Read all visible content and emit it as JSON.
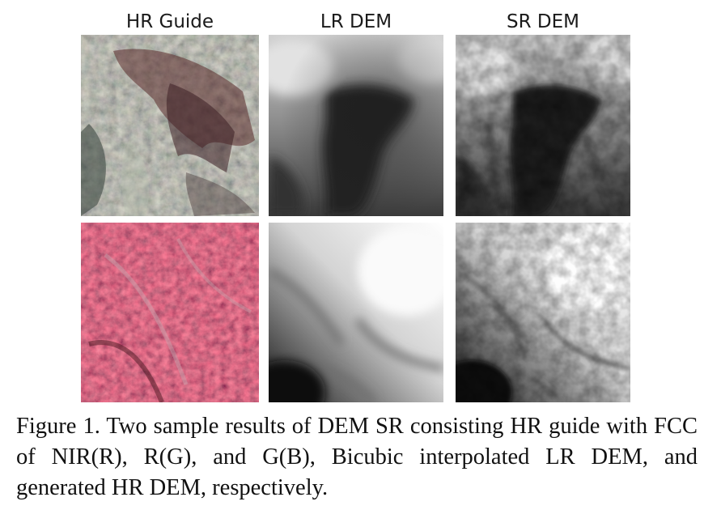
{
  "columns": [
    "HR Guide",
    "LR DEM",
    "SR DEM"
  ],
  "caption": "Figure 1.  Two sample results of DEM SR consisting HR guide with FCC of NIR(R), R(G), and G(B), Bicubic interpolated LR DEM, and generated HR DEM, respectively."
}
